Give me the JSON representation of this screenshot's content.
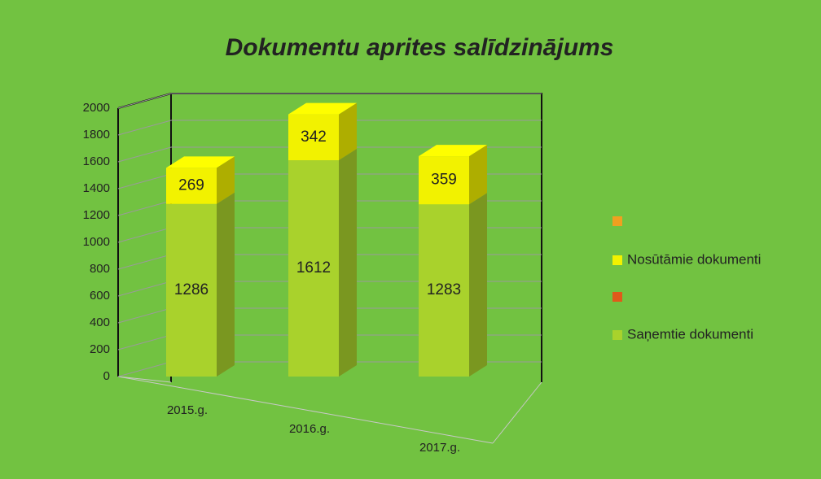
{
  "chart_data": {
    "type": "bar3d_stacked",
    "title": "Dokumentu aprites salīdzinājums",
    "categories": [
      "2015.g.",
      "2016.g.",
      "2017.g."
    ],
    "series": [
      {
        "name": "Saņemtie dokumenti",
        "color": "#a9d22c",
        "values": [
          1286,
          1612,
          1283
        ]
      },
      {
        "name": "Nosūtāmie dokumenti",
        "color": "#f2f200",
        "values": [
          269,
          342,
          359
        ]
      }
    ],
    "ylim": [
      0,
      2000
    ],
    "yticks": [
      0,
      200,
      400,
      600,
      800,
      1000,
      1200,
      1400,
      1600,
      1800,
      2000
    ],
    "grid": true
  }
}
